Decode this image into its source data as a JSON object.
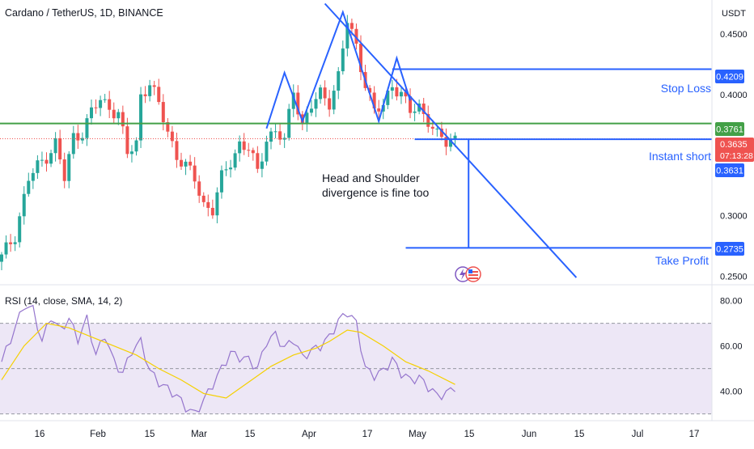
{
  "symbol_title": "Cardano / TetherUS, 1D, BINANCE",
  "currency": "USDT",
  "price_scale_ticks": [
    "0.4500",
    "0.4000",
    "0.3000",
    "0.2500"
  ],
  "price_scale_tick_values": [
    0.45,
    0.4,
    0.3,
    0.25
  ],
  "rsi_scale_ticks": [
    "80.00",
    "60.00",
    "40.00"
  ],
  "rsi_scale_tick_values": [
    80,
    60,
    40
  ],
  "date_ticks": [
    "16",
    "Feb",
    "15",
    "Mar",
    "15",
    "Apr",
    "17",
    "May",
    "15",
    "Jun",
    "15",
    "Jul",
    "17"
  ],
  "rsi_title": "RSI (14, close, SMA, 14, 2)",
  "annotations": {
    "stop_loss": "Stop Loss",
    "instant_short": "Instant short",
    "take_profit": "Take Profit",
    "note_line1": "Head and Shoulder",
    "note_line2": "divergence is fine too"
  },
  "price_badges": {
    "stop_loss": "0.4209",
    "green_level": "0.3761",
    "last_price": "0.3635",
    "countdown": "07:13:28",
    "instant_short": "0.3631",
    "take_profit": "0.2735"
  },
  "colors": {
    "up": "#26a69a",
    "down": "#ef5350",
    "drawing": "#2962ff",
    "green_line": "#43a047",
    "rsi_line": "#9575cd",
    "rsi_sma": "#f5d000",
    "rsi_band": "#ede7f6"
  },
  "chart_data": {
    "type": "candlestick",
    "title": "Cardano / TetherUS, 1D, BINANCE",
    "y_unit": "USDT",
    "ylim": [
      0.243,
      0.478
    ],
    "price_levels": {
      "stop_loss": 0.4209,
      "green_resistance": 0.3761,
      "last_price": 0.3635,
      "instant_short": 0.3631,
      "take_profit": 0.2735
    },
    "close_path": [
      [
        0,
        0.265
      ],
      [
        3,
        0.285
      ],
      [
        6,
        0.33
      ],
      [
        9,
        0.345
      ],
      [
        12,
        0.36
      ],
      [
        14,
        0.33
      ],
      [
        16,
        0.365
      ],
      [
        18,
        0.37
      ],
      [
        20,
        0.385
      ],
      [
        22,
        0.395
      ],
      [
        24,
        0.39
      ],
      [
        26,
        0.385
      ],
      [
        28,
        0.35
      ],
      [
        30,
        0.36
      ],
      [
        31,
        0.4
      ],
      [
        33,
        0.41
      ],
      [
        35,
        0.39
      ],
      [
        37,
        0.37
      ],
      [
        39,
        0.35
      ],
      [
        41,
        0.34
      ],
      [
        43,
        0.33
      ],
      [
        45,
        0.31
      ],
      [
        47,
        0.305
      ],
      [
        49,
        0.33
      ],
      [
        51,
        0.345
      ],
      [
        53,
        0.36
      ],
      [
        55,
        0.355
      ],
      [
        57,
        0.335
      ],
      [
        59,
        0.365
      ],
      [
        61,
        0.37
      ],
      [
        63,
        0.36
      ],
      [
        65,
        0.405
      ],
      [
        67,
        0.375
      ],
      [
        69,
        0.39
      ],
      [
        71,
        0.4
      ],
      [
        73,
        0.395
      ],
      [
        75,
        0.415
      ],
      [
        77,
        0.46
      ],
      [
        79,
        0.44
      ],
      [
        81,
        0.41
      ],
      [
        83,
        0.385
      ],
      [
        85,
        0.39
      ],
      [
        87,
        0.41
      ],
      [
        89,
        0.4
      ],
      [
        91,
        0.385
      ],
      [
        93,
        0.39
      ],
      [
        95,
        0.38
      ],
      [
        97,
        0.365
      ],
      [
        99,
        0.36
      ],
      [
        101,
        0.365
      ]
    ],
    "rsi": {
      "title": "RSI (14, close, SMA, 14, 2)",
      "ylim": [
        27,
        87
      ],
      "upper_band": 70,
      "lower_band": 30,
      "mid": 50,
      "rsi_path": [
        [
          0,
          53
        ],
        [
          3,
          68
        ],
        [
          5,
          78
        ],
        [
          7,
          76
        ],
        [
          9,
          62
        ],
        [
          11,
          73
        ],
        [
          13,
          67
        ],
        [
          15,
          72
        ],
        [
          17,
          63
        ],
        [
          19,
          72
        ],
        [
          21,
          56
        ],
        [
          23,
          65
        ],
        [
          25,
          53
        ],
        [
          27,
          48
        ],
        [
          29,
          58
        ],
        [
          31,
          62
        ],
        [
          33,
          49
        ],
        [
          35,
          44
        ],
        [
          37,
          41
        ],
        [
          39,
          38
        ],
        [
          41,
          33
        ],
        [
          43,
          30
        ],
        [
          45,
          36
        ],
        [
          47,
          43
        ],
        [
          49,
          50
        ],
        [
          51,
          57
        ],
        [
          53,
          55
        ],
        [
          55,
          54
        ],
        [
          57,
          50
        ],
        [
          59,
          62
        ],
        [
          61,
          65
        ],
        [
          63,
          59
        ],
        [
          65,
          63
        ],
        [
          67,
          55
        ],
        [
          69,
          58
        ],
        [
          71,
          60
        ],
        [
          73,
          64
        ],
        [
          75,
          71
        ],
        [
          77,
          75
        ],
        [
          79,
          70
        ],
        [
          81,
          50
        ],
        [
          83,
          47
        ],
        [
          85,
          49
        ],
        [
          87,
          54
        ],
        [
          89,
          48
        ],
        [
          91,
          45
        ],
        [
          93,
          46
        ],
        [
          95,
          42
        ],
        [
          97,
          38
        ],
        [
          99,
          39
        ],
        [
          101,
          42
        ]
      ],
      "sma_path": [
        [
          0,
          45
        ],
        [
          5,
          60
        ],
        [
          10,
          70
        ],
        [
          15,
          68
        ],
        [
          20,
          64
        ],
        [
          25,
          60
        ],
        [
          30,
          56
        ],
        [
          35,
          50
        ],
        [
          40,
          45
        ],
        [
          45,
          39
        ],
        [
          50,
          37
        ],
        [
          55,
          44
        ],
        [
          60,
          51
        ],
        [
          65,
          56
        ],
        [
          70,
          59
        ],
        [
          73,
          62
        ],
        [
          77,
          67
        ],
        [
          80,
          66
        ],
        [
          85,
          60
        ],
        [
          90,
          53
        ],
        [
          95,
          49
        ],
        [
          101,
          43
        ]
      ]
    },
    "drawings": {
      "head_shoulders": [
        [
          59,
          0.372
        ],
        [
          63,
          0.418
        ],
        [
          67,
          0.378
        ],
        [
          76,
          0.468
        ],
        [
          84,
          0.378
        ],
        [
          88,
          0.43
        ],
        [
          91,
          0.395
        ]
      ],
      "falling_trendline": [
        [
          72,
          0.475
        ],
        [
          128,
          0.249
        ]
      ],
      "target_measure": [
        [
          104,
          0.3631
        ],
        [
          104,
          0.2735
        ]
      ]
    }
  }
}
